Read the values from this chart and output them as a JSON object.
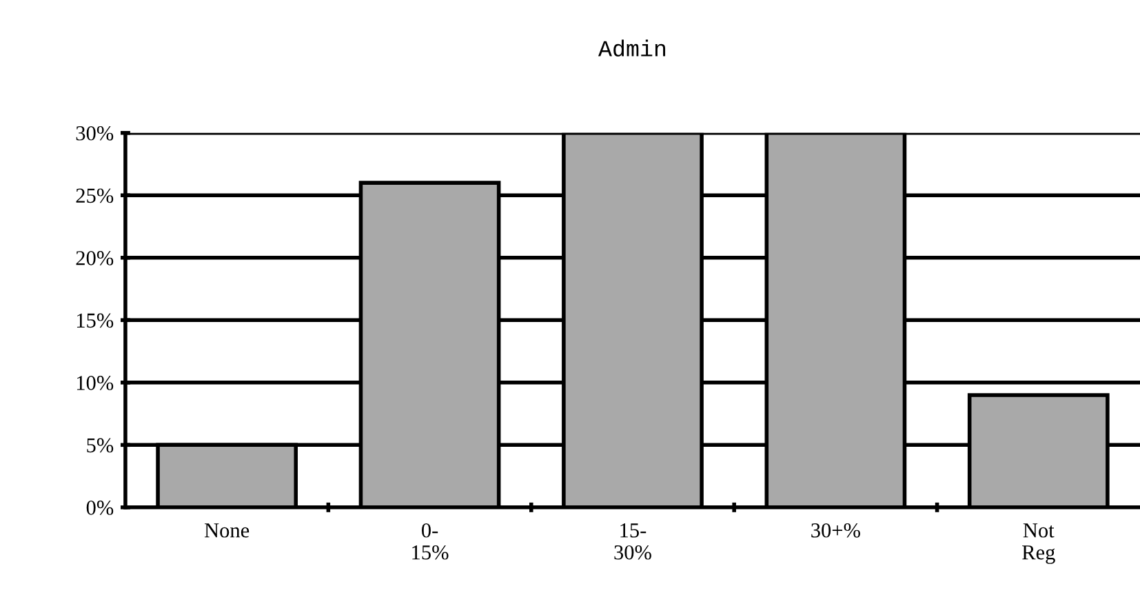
{
  "chart_data": {
    "type": "bar",
    "title": "Admin",
    "categories": [
      "None",
      "0-\n15%",
      "15-\n30%",
      "30+%",
      "Not\nReg"
    ],
    "values": [
      5,
      26,
      30,
      30,
      9
    ],
    "color": "#a9a9a9",
    "ylim": [
      0,
      30
    ],
    "yticks": [
      {
        "value": 0,
        "label": "0%"
      },
      {
        "value": 5,
        "label": "5%"
      },
      {
        "value": 10,
        "label": "10%"
      },
      {
        "value": 15,
        "label": "15%"
      },
      {
        "value": 20,
        "label": "20%"
      },
      {
        "value": 25,
        "label": "25%"
      },
      {
        "value": 30,
        "label": "30%"
      }
    ],
    "grid": "y",
    "legend": false
  }
}
